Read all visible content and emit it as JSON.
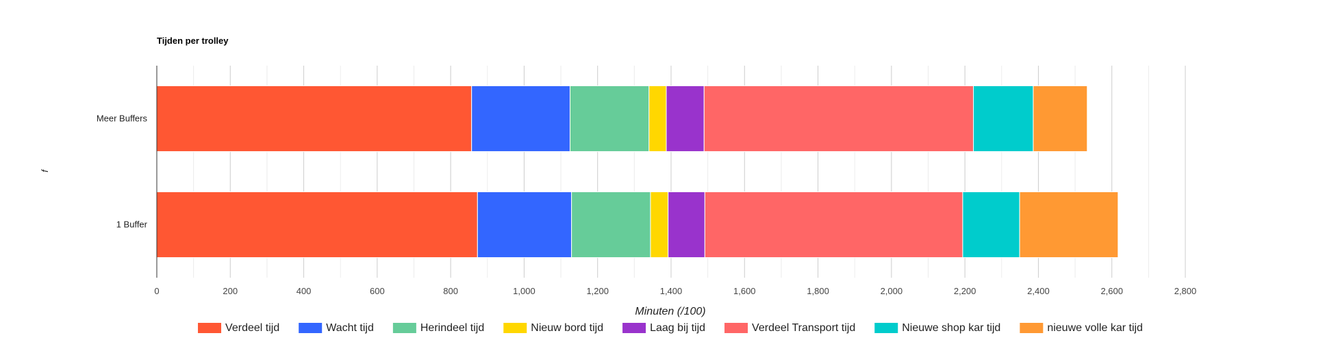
{
  "chart_data": {
    "type": "bar",
    "orientation": "horizontal",
    "stacked": true,
    "title": "Tijden per trolley",
    "xlabel": "Minuten (/100)",
    "ylabel": "f",
    "xlim": [
      0,
      2800
    ],
    "xticks": [
      0,
      200,
      400,
      600,
      800,
      1000,
      1200,
      1400,
      1600,
      1800,
      2000,
      2200,
      2400,
      2600,
      2800
    ],
    "xtick_labels": [
      "0",
      "200",
      "400",
      "600",
      "800",
      "1,000",
      "1,200",
      "1,400",
      "1,600",
      "1,800",
      "2,000",
      "2,200",
      "2,400",
      "2,600",
      "2,800"
    ],
    "categories": [
      "Meer Buffers",
      "1 Buffer"
    ],
    "grid": true,
    "legend_position": "bottom",
    "series": [
      {
        "name": "Verdeel tijd",
        "color": "#ff5733",
        "values": [
          857,
          873
        ]
      },
      {
        "name": "Wacht tijd",
        "color": "#3366ff",
        "values": [
          268,
          256
        ]
      },
      {
        "name": "Herindeel tijd",
        "color": "#66cc99",
        "values": [
          215,
          215
        ]
      },
      {
        "name": "Nieuw bord tijd",
        "color": "#ffd700",
        "values": [
          47,
          48
        ]
      },
      {
        "name": "Laag bij tijd",
        "color": "#9933cc",
        "values": [
          103,
          100
        ]
      },
      {
        "name": "Verdeel Transport tijd",
        "color": "#ff6666",
        "values": [
          733,
          702
        ]
      },
      {
        "name": "Nieuwe shop kar tijd",
        "color": "#00cccc",
        "values": [
          163,
          155
        ]
      },
      {
        "name": "nieuwe volle kar tijd",
        "color": "#ff9933",
        "values": [
          147,
          268
        ]
      }
    ]
  }
}
